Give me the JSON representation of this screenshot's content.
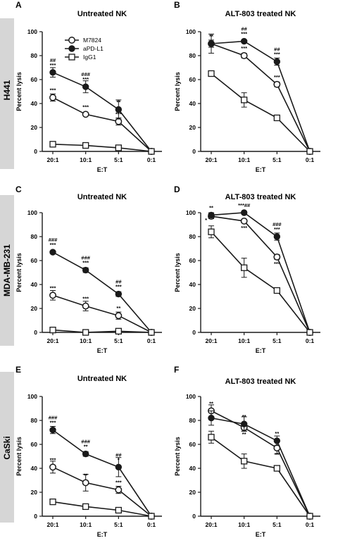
{
  "rows": [
    {
      "label": "H441"
    },
    {
      "label": "MDA-MB-231"
    },
    {
      "label": "CaSki"
    }
  ],
  "colors": {
    "line": "#1a1a1a",
    "band": "#d6d6d6"
  },
  "chart_data": [
    {
      "panel": "A",
      "type": "line",
      "title": "Untreated NK",
      "xlabel": "E:T",
      "ylabel": "Percent lysis",
      "categories": [
        "20:1",
        "10:1",
        "5:1",
        "0:1"
      ],
      "ylim": [
        0,
        100
      ],
      "yticks": [
        0,
        20,
        40,
        60,
        80,
        100
      ],
      "legend": {
        "show": true,
        "placement": "top-left"
      },
      "series": [
        {
          "name": "M7824",
          "marker": "open-circle",
          "values": [
            45,
            31,
            25,
            0
          ],
          "err": [
            3,
            1,
            3,
            0
          ]
        },
        {
          "name": "aPD-L1",
          "marker": "filled-circle",
          "values": [
            66,
            54,
            35,
            0
          ],
          "err": [
            4,
            5,
            8,
            0
          ]
        },
        {
          "name": "IgG1",
          "marker": "open-square",
          "values": [
            6,
            5,
            3,
            0
          ],
          "err": [
            1,
            1,
            1,
            0
          ]
        }
      ],
      "annotations": [
        {
          "x": "20:1",
          "lines": [
            "##",
            "***"
          ],
          "y": 66
        },
        {
          "x": "10:1",
          "lines": [
            "###",
            "***"
          ],
          "y": 54
        },
        {
          "x": "5:1",
          "lines": [
            "**"
          ],
          "y": 35
        },
        {
          "x": "20:1",
          "lines": [
            "***"
          ],
          "y": 45
        },
        {
          "x": "10:1",
          "lines": [
            "***"
          ],
          "y": 31
        },
        {
          "x": "5:1",
          "lines": [
            "***"
          ],
          "y": 25
        }
      ]
    },
    {
      "panel": "B",
      "type": "line",
      "title": "ALT-803 treated NK",
      "xlabel": "E:T",
      "ylabel": "Percent lysis",
      "categories": [
        "20:1",
        "10:1",
        "5:1",
        "0:1"
      ],
      "ylim": [
        0,
        100
      ],
      "yticks": [
        0,
        20,
        40,
        60,
        80,
        100
      ],
      "series": [
        {
          "name": "M7824",
          "marker": "open-circle",
          "values": [
            90,
            80,
            56,
            0
          ],
          "err": [
            3,
            2,
            2,
            0
          ]
        },
        {
          "name": "aPD-L1",
          "marker": "filled-circle",
          "values": [
            90,
            92,
            75,
            0
          ],
          "err": [
            8,
            1,
            3,
            0
          ]
        },
        {
          "name": "IgG1",
          "marker": "open-square",
          "values": [
            65,
            43,
            28,
            0
          ],
          "err": [
            1,
            6,
            1,
            0
          ]
        }
      ],
      "annotations": [
        {
          "x": "20:1",
          "lines": [
            "**"
          ],
          "y": 90
        },
        {
          "x": "10:1",
          "lines": [
            "##",
            "***"
          ],
          "y": 92
        },
        {
          "x": "5:1",
          "lines": [
            "##",
            "***"
          ],
          "y": 75
        },
        {
          "x": "10:1",
          "lines": [
            "***"
          ],
          "y": 80
        },
        {
          "x": "5:1",
          "lines": [
            "***"
          ],
          "y": 56
        }
      ]
    },
    {
      "panel": "C",
      "type": "line",
      "title": "Untreated NK",
      "xlabel": "E:T",
      "ylabel": "Percent lysis",
      "categories": [
        "20:1",
        "10:1",
        "5:1",
        "0:1"
      ],
      "ylim": [
        0,
        100
      ],
      "yticks": [
        0,
        20,
        40,
        60,
        80,
        100
      ],
      "series": [
        {
          "name": "M7824",
          "marker": "open-circle",
          "values": [
            31,
            22,
            14,
            0
          ],
          "err": [
            4,
            4,
            3,
            0
          ]
        },
        {
          "name": "aPD-L1",
          "marker": "filled-circle",
          "values": [
            67,
            52,
            32,
            0
          ],
          "err": [
            1,
            2,
            2,
            0
          ]
        },
        {
          "name": "IgG1",
          "marker": "open-square",
          "values": [
            2,
            0,
            1,
            0
          ],
          "err": [
            1,
            1,
            1,
            0
          ]
        }
      ],
      "annotations": [
        {
          "x": "20:1",
          "lines": [
            "###",
            "***"
          ],
          "y": 67
        },
        {
          "x": "10:1",
          "lines": [
            "###",
            "***"
          ],
          "y": 52
        },
        {
          "x": "5:1",
          "lines": [
            "##",
            "***"
          ],
          "y": 32
        },
        {
          "x": "20:1",
          "lines": [
            "***"
          ],
          "y": 31
        },
        {
          "x": "10:1",
          "lines": [
            "***"
          ],
          "y": 22
        },
        {
          "x": "5:1",
          "lines": [
            "**"
          ],
          "y": 14
        }
      ]
    },
    {
      "panel": "D",
      "type": "line",
      "title": "ALT-803 treated NK",
      "xlabel": "E:T",
      "ylabel": "Percent lysis",
      "categories": [
        "20:1",
        "10:1",
        "5:1",
        "0:1"
      ],
      "ylim": [
        0,
        100
      ],
      "yticks": [
        0,
        20,
        40,
        60,
        80,
        100
      ],
      "series": [
        {
          "name": "M7824",
          "marker": "open-circle",
          "values": [
            97,
            93,
            63,
            0
          ],
          "err": [
            2,
            1,
            2,
            0
          ]
        },
        {
          "name": "aPD-L1",
          "marker": "filled-circle",
          "values": [
            98,
            100,
            80,
            0
          ],
          "err": [
            2,
            1,
            3,
            0
          ]
        },
        {
          "name": "IgG1",
          "marker": "open-square",
          "values": [
            84,
            54,
            35,
            0
          ],
          "err": [
            5,
            8,
            1,
            0
          ]
        }
      ],
      "annotations": [
        {
          "x": "20:1",
          "lines": [
            "**"
          ],
          "y": 98
        },
        {
          "x": "20:1",
          "lines": [
            "*"
          ],
          "y": 94,
          "side": "left"
        },
        {
          "x": "10:1",
          "lines": [
            "***##"
          ],
          "y": 100
        },
        {
          "x": "10:1",
          "lines": [
            "***"
          ],
          "y": 93,
          "side": "below"
        },
        {
          "x": "5:1",
          "lines": [
            "###",
            "***"
          ],
          "y": 80
        },
        {
          "x": "5:1",
          "lines": [
            "***"
          ],
          "y": 63,
          "side": "below"
        }
      ]
    },
    {
      "panel": "E",
      "type": "line",
      "title": "Untreated NK",
      "xlabel": "E:T",
      "ylabel": "Percent lysis",
      "categories": [
        "20:1",
        "10:1",
        "5:1",
        "0:1"
      ],
      "ylim": [
        0,
        100
      ],
      "yticks": [
        0,
        20,
        40,
        60,
        80,
        100
      ],
      "series": [
        {
          "name": "M7824",
          "marker": "open-circle",
          "values": [
            41,
            28,
            22,
            0
          ],
          "err": [
            5,
            7,
            3,
            0
          ]
        },
        {
          "name": "aPD-L1",
          "marker": "filled-circle",
          "values": [
            72,
            52,
            41,
            0
          ],
          "err": [
            3,
            2,
            8,
            0
          ]
        },
        {
          "name": "IgG1",
          "marker": "open-square",
          "values": [
            12,
            8,
            5,
            0
          ],
          "err": [
            1,
            1,
            1,
            0
          ]
        }
      ],
      "annotations": [
        {
          "x": "20:1",
          "lines": [
            "###",
            "***"
          ],
          "y": 72
        },
        {
          "x": "10:1",
          "lines": [
            "###",
            "**"
          ],
          "y": 52
        },
        {
          "x": "5:1",
          "lines": [
            "##",
            "*"
          ],
          "y": 41
        },
        {
          "x": "20:1",
          "lines": [
            "***"
          ],
          "y": 41
        },
        {
          "x": "10:1",
          "lines": [
            "**"
          ],
          "y": 28
        },
        {
          "x": "5:1",
          "lines": [
            "***"
          ],
          "y": 22
        }
      ]
    },
    {
      "panel": "F",
      "type": "line",
      "title": "ALT-803 treated NK",
      "xlabel": "E:T",
      "ylabel": "Percent lysis",
      "categories": [
        "20:1",
        "10:1",
        "5:1",
        "0:1"
      ],
      "ylim": [
        0,
        100
      ],
      "yticks": [
        0,
        20,
        40,
        60,
        80,
        100
      ],
      "series": [
        {
          "name": "M7824",
          "marker": "open-circle",
          "values": [
            88,
            74,
            57,
            0
          ],
          "err": [
            5,
            3,
            5,
            0
          ]
        },
        {
          "name": "aPD-L1",
          "marker": "filled-circle",
          "values": [
            82,
            77,
            63,
            0
          ],
          "err": [
            6,
            6,
            4,
            0
          ]
        },
        {
          "name": "IgG1",
          "marker": "open-square",
          "values": [
            66,
            46,
            40,
            0
          ],
          "err": [
            5,
            6,
            1,
            0
          ]
        }
      ],
      "annotations": [
        {
          "x": "20:1",
          "lines": [
            "**"
          ],
          "y": 88
        },
        {
          "x": "10:1",
          "lines": [
            "**"
          ],
          "y": 77
        },
        {
          "x": "5:1",
          "lines": [
            "**"
          ],
          "y": 63
        },
        {
          "x": "10:1",
          "lines": [
            "**"
          ],
          "y": 74,
          "side": "below"
        },
        {
          "x": "5:1",
          "lines": [
            "**"
          ],
          "y": 57,
          "side": "below"
        }
      ]
    }
  ]
}
